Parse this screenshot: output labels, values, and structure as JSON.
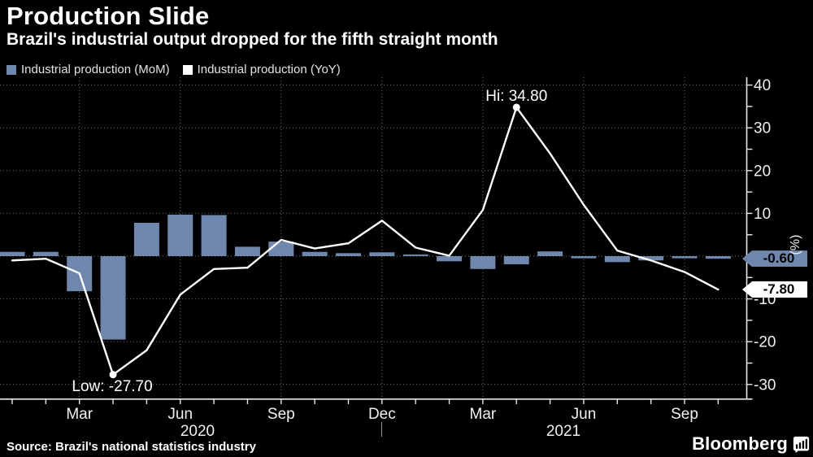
{
  "header": {
    "title": "Production Slide",
    "subtitle": "Brazil's industrial output dropped for the fifth straight month"
  },
  "legend": {
    "items": [
      {
        "label": "Industrial production (MoM)",
        "color": "#7087ad"
      },
      {
        "label": "Industrial production (YoY)",
        "color": "#ffffff"
      }
    ]
  },
  "chart_data": {
    "type": "bar+line",
    "title": "Production Slide",
    "unit_label": "(%)",
    "categories": [
      "Jan 2020",
      "Feb 2020",
      "Mar 2020",
      "Apr 2020",
      "May 2020",
      "Jun 2020",
      "Jul 2020",
      "Aug 2020",
      "Sep 2020",
      "Oct 2020",
      "Nov 2020",
      "Dec 2020",
      "Jan 2021",
      "Feb 2021",
      "Mar 2021",
      "Apr 2021",
      "May 2021",
      "Jun 2021",
      "Jul 2021",
      "Aug 2021",
      "Sep 2021",
      "Oct 2021"
    ],
    "series": [
      {
        "name": "Industrial production (MoM)",
        "type": "bar",
        "color": "#7087ad",
        "values": [
          1.0,
          1.0,
          -8.2,
          -19.5,
          7.8,
          9.7,
          9.6,
          2.2,
          3.4,
          1.0,
          0.7,
          0.9,
          0.4,
          -1.2,
          -3.0,
          -1.9,
          1.1,
          -0.5,
          -1.4,
          -1.0,
          -0.5,
          -0.6
        ]
      },
      {
        "name": "Industrial production (YoY)",
        "type": "line",
        "color": "#ffffff",
        "values": [
          -1.0,
          -0.6,
          -4.0,
          -27.7,
          -22.0,
          -9.0,
          -3.0,
          -2.7,
          3.8,
          1.8,
          3.0,
          8.3,
          2.0,
          0.1,
          10.8,
          34.8,
          24.0,
          12.0,
          1.3,
          -1.0,
          -3.7,
          -7.8
        ]
      }
    ],
    "ylim": [
      -33,
      42
    ],
    "yticks": [
      40,
      30,
      20,
      10,
      -10,
      -20,
      -30
    ],
    "gridline_values": [
      40,
      30,
      20,
      10,
      0,
      -10,
      -20,
      -30
    ],
    "grid": "dotted",
    "legend_position": "top-left",
    "xticks": [
      {
        "index": 2,
        "label": "Mar"
      },
      {
        "index": 5,
        "label": "Jun"
      },
      {
        "index": 8,
        "label": "Sep"
      },
      {
        "index": 11,
        "label": "Dec"
      },
      {
        "index": 14,
        "label": "Mar"
      },
      {
        "index": 17,
        "label": "Jun"
      },
      {
        "index": 20,
        "label": "Sep"
      }
    ],
    "year_labels": [
      {
        "label": "2020",
        "x": 243
      },
      {
        "label": "2021",
        "x": 693
      }
    ],
    "annotations": {
      "hi": {
        "label": "Hi: 34.80",
        "value": 34.8,
        "index": 15
      },
      "low": {
        "label": "Low: -27.70",
        "value": -27.7,
        "index": 3
      }
    },
    "end_labels": [
      {
        "text": "-0.60",
        "value": -0.6,
        "bg": "#7087ad",
        "fg": "#000000"
      },
      {
        "text": "-7.80",
        "value": -7.8,
        "bg": "#ffffff",
        "fg": "#000000"
      }
    ]
  },
  "footer": {
    "source": "Source: Brazil's national statistics industry",
    "brand": "Bloomberg"
  }
}
